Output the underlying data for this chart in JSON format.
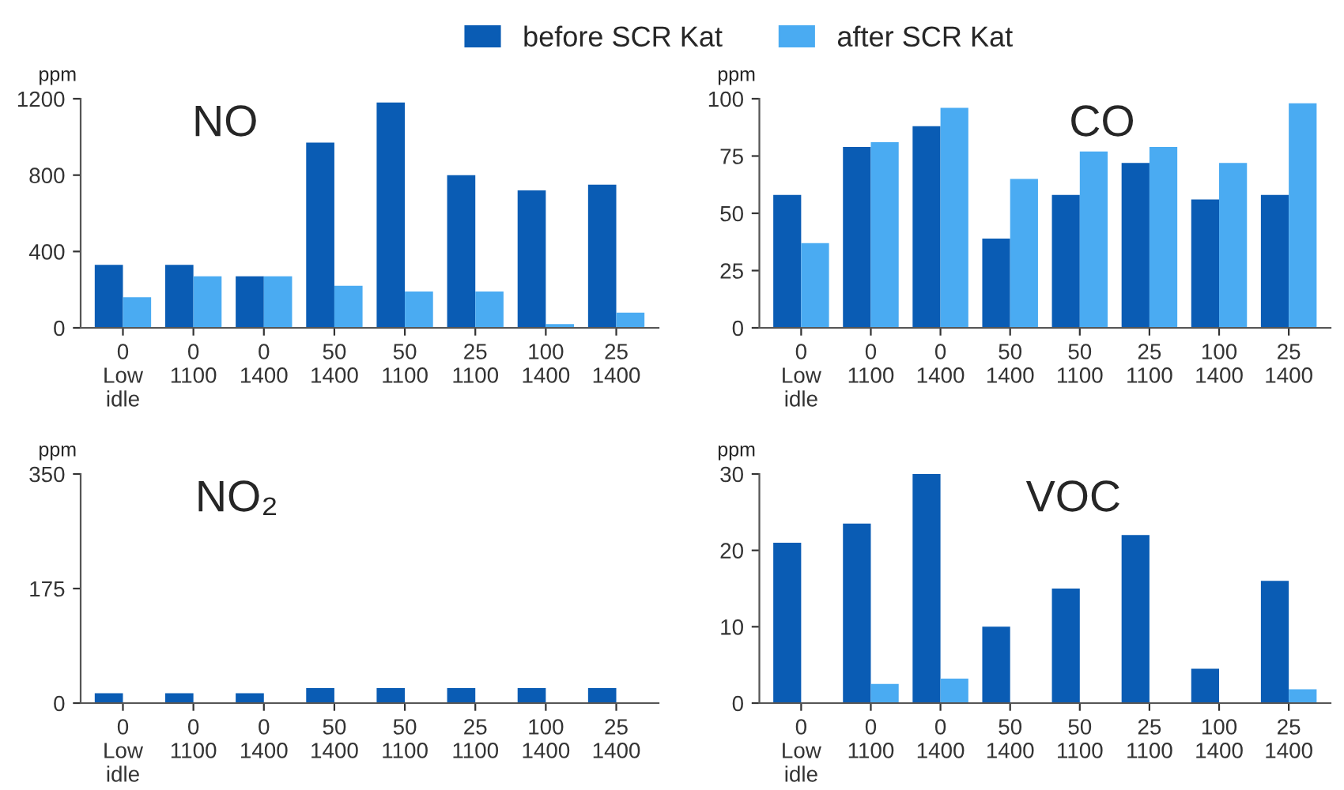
{
  "chart_data": [
    {
      "type": "bar",
      "title": "NO",
      "ylabel": "ppm",
      "categories": [
        "0\nLow\nidle",
        "0\n1100",
        "0\n1400",
        "50\n1400",
        "50\n1100",
        "25\n1100",
        "100\n1400",
        "25\n1400"
      ],
      "legend": "top",
      "series": [
        {
          "name": "before SCR Kat",
          "color": "#0a5cb4",
          "values": [
            330,
            330,
            270,
            970,
            1180,
            800,
            720,
            750
          ]
        },
        {
          "name": "after SCR Kat",
          "color": "#4aabf2",
          "values": [
            160,
            270,
            270,
            220,
            190,
            190,
            20,
            80
          ]
        }
      ],
      "ylim": [
        0,
        1200
      ],
      "yticks": [
        0,
        400,
        800,
        1200
      ]
    },
    {
      "type": "bar",
      "title": "CO",
      "ylabel": "ppm",
      "categories": [
        "0\nLow\nidle",
        "0\n1100",
        "0\n1400",
        "50\n1400",
        "50\n1100",
        "25\n1100",
        "100\n1400",
        "25\n1400"
      ],
      "series": [
        {
          "color": "#0a5cb4",
          "values": [
            58,
            79,
            88,
            39,
            58,
            72,
            56,
            58
          ]
        },
        {
          "color": "#4aabf2",
          "values": [
            37,
            81,
            96,
            65,
            77,
            79,
            72,
            98
          ]
        }
      ],
      "ylim": [
        0,
        100
      ],
      "yticks": [
        0,
        25,
        50,
        75,
        100
      ]
    },
    {
      "type": "bar",
      "title": "NO₂",
      "ylabel": "ppm",
      "categories": [
        "0\nLow\nidle",
        "0\n1100",
        "0\n1400",
        "50\n1400",
        "50\n1100",
        "25\n1100",
        "100\n1400",
        "25\n1400"
      ],
      "series": [
        {
          "color": "#0a5cb4",
          "values": [
            15,
            15,
            15,
            23,
            23,
            23,
            23,
            23
          ]
        },
        {
          "color": "#4aabf2",
          "values": [
            null,
            null,
            null,
            null,
            null,
            null,
            null,
            null
          ]
        }
      ],
      "ylim": [
        0,
        350
      ],
      "yticks": [
        0,
        175,
        350
      ]
    },
    {
      "type": "bar",
      "title": "VOC",
      "ylabel": "ppm",
      "categories": [
        "0\nLow\nidle",
        "0\n1100",
        "0\n1400",
        "50\n1400",
        "50\n1100",
        "25\n1100",
        "100\n1400",
        "25\n1400"
      ],
      "series": [
        {
          "color": "#0a5cb4",
          "values": [
            21,
            23.5,
            30,
            10,
            15,
            22,
            4.5,
            16
          ]
        },
        {
          "color": "#4aabf2",
          "values": [
            null,
            2.5,
            3.2,
            null,
            null,
            null,
            null,
            1.8
          ]
        }
      ],
      "ylim": [
        0,
        30
      ],
      "yticks": [
        0,
        10,
        20,
        30
      ]
    }
  ]
}
